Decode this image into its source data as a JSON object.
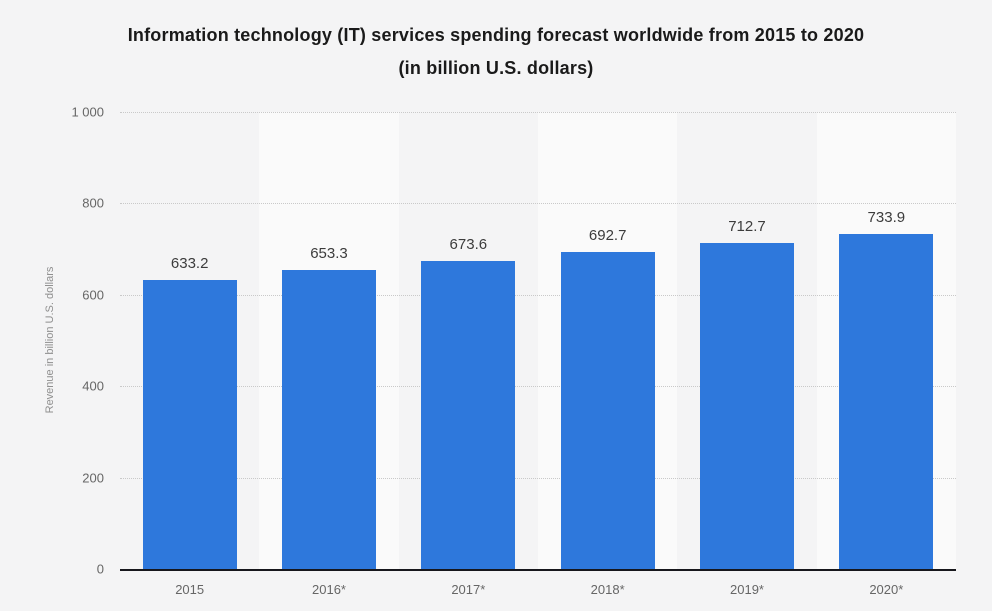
{
  "title": {
    "line1": "Information technology (IT) services spending forecast worldwide from 2015 to 2020",
    "line2": "(in billion U.S. dollars)"
  },
  "chart_data": {
    "type": "bar",
    "title": "Information technology (IT) services spending forecast worldwide from 2015 to 2020 (in billion U.S. dollars)",
    "categories": [
      "2015",
      "2016*",
      "2017*",
      "2018*",
      "2019*",
      "2020*"
    ],
    "values": [
      633.2,
      653.3,
      673.6,
      692.7,
      712.7,
      733.9
    ],
    "value_labels": [
      "633.2",
      "653.3",
      "673.6",
      "692.7",
      "712.7",
      "733.9"
    ],
    "xlabel": "",
    "ylabel": "Revenue in billion U.S. dollars",
    "ylim": [
      0,
      1000
    ],
    "yticks": [
      0,
      200,
      400,
      600,
      800,
      1000
    ],
    "ytick_labels": [
      "0",
      "200",
      "400",
      "600",
      "800",
      "1 000"
    ],
    "grid": "horizontal-dotted",
    "legend": "none",
    "band_alternation": "every other category shaded lighter starting with second"
  },
  "colors": {
    "bar": "#2e78dc",
    "background": "#f4f4f5",
    "band_alt": "#fafafa",
    "grid": "#c9c9c9",
    "axis_line": "#17171c",
    "title_text": "#1a1a1a",
    "tick_text": "#666666",
    "value_label_text": "#3c3c3c",
    "y_axis_title_text": "#8f8f8f"
  }
}
